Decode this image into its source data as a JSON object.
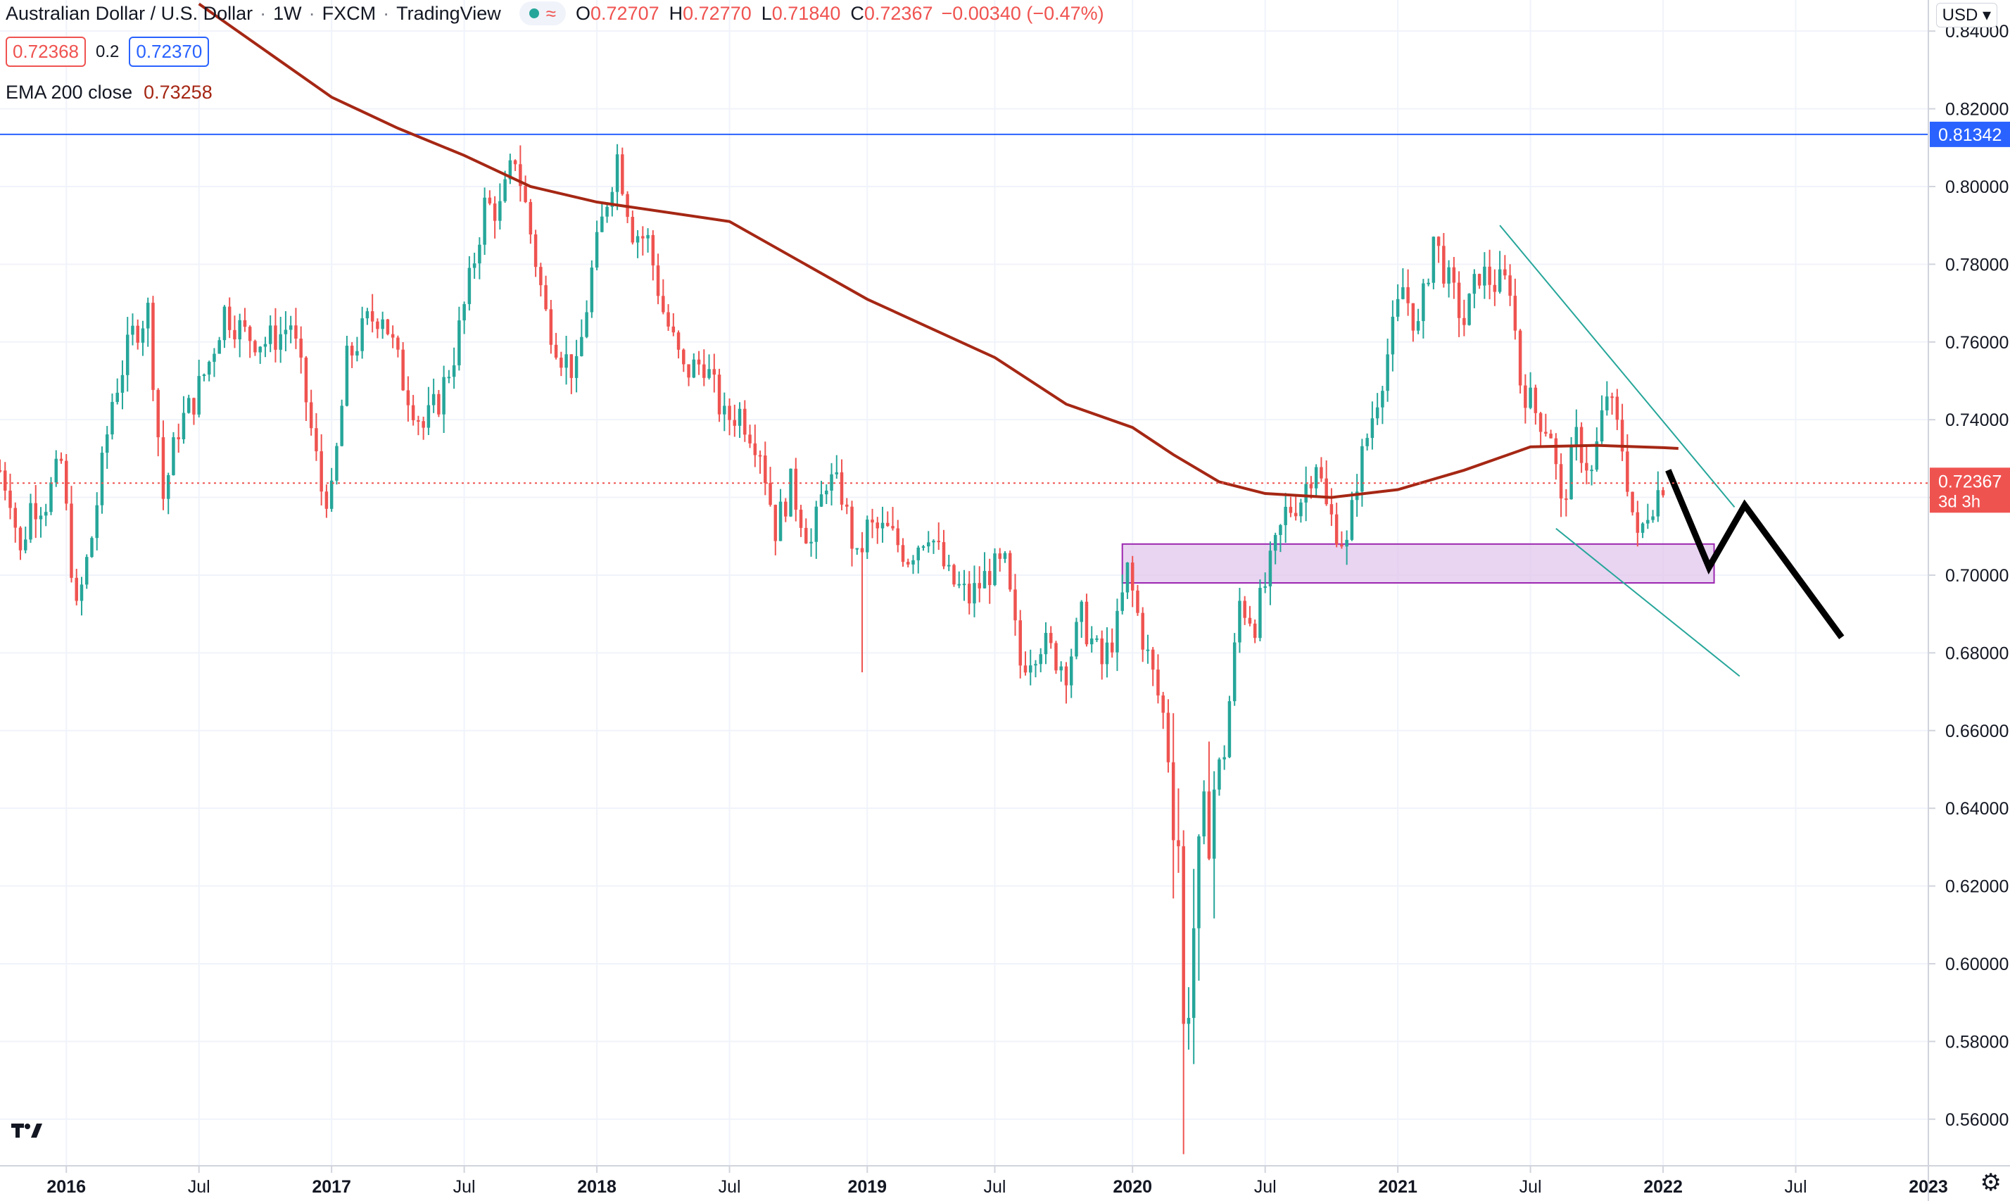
{
  "header": {
    "symbol": "Australian Dollar / U.S. Dollar",
    "interval": "1W",
    "exchange": "FXCM",
    "platform": "TradingView",
    "ohlc": {
      "o_label": "O",
      "o": "0.72707",
      "h_label": "H",
      "h": "0.72770",
      "l_label": "L",
      "l": "0.71840",
      "c_label": "C",
      "c": "0.72367",
      "change": "−0.00340 (−0.47%)"
    },
    "sell_price": "0.72368",
    "spread": "0.2",
    "buy_price": "0.72370",
    "ema_label": "EMA 200 close",
    "ema_value": "0.73258",
    "currency": "USD",
    "status_icon": "market-open-dot",
    "waves_icon": "≈"
  },
  "price_axis": {
    "labels": [
      "0.84000",
      "0.82000",
      "0.80000",
      "0.78000",
      "0.76000",
      "0.74000",
      "0.72000",
      "0.70000",
      "0.68000",
      "0.66000",
      "0.64000",
      "0.62000",
      "0.60000",
      "0.58000",
      "0.56000"
    ],
    "current_price_tag": "0.72367",
    "countdown_tag": "3d 3h",
    "hline_tag": "0.81342"
  },
  "time_axis": {
    "labels": [
      "2016",
      "Jul",
      "2017",
      "Jul",
      "2018",
      "Jul",
      "2019",
      "Jul",
      "2020",
      "Jul",
      "2021",
      "Jul",
      "2022",
      "Jul",
      "2023"
    ]
  },
  "colors": {
    "up": "#26a69a",
    "down": "#ef5350",
    "ema": "#a52714",
    "hline": "#2962ff",
    "trend": "#26a69a",
    "zone_fill": "#e1c6ec",
    "zone_border": "#9c27b0",
    "projection": "#000000",
    "grid": "#f0f3fa"
  },
  "chart_data": {
    "type": "candlestick",
    "timeframe": "weekly",
    "y_range": [
      0.548,
      0.848
    ],
    "x_range": [
      "2015-10-05",
      "2023-01-02"
    ],
    "ticks": [
      {
        "label": "2016",
        "date": "2016-01-04"
      },
      {
        "label": "Jul",
        "date": "2016-07-04"
      },
      {
        "label": "2017",
        "date": "2017-01-02"
      },
      {
        "label": "Jul",
        "date": "2017-07-03"
      },
      {
        "label": "2018",
        "date": "2018-01-01"
      },
      {
        "label": "Jul",
        "date": "2018-07-02"
      },
      {
        "label": "2019",
        "date": "2019-01-07"
      },
      {
        "label": "Jul",
        "date": "2019-07-01"
      },
      {
        "label": "2020",
        "date": "2020-01-06"
      },
      {
        "label": "Jul",
        "date": "2020-07-06"
      },
      {
        "label": "2021",
        "date": "2021-01-04"
      },
      {
        "label": "Jul",
        "date": "2021-07-05"
      },
      {
        "label": "2022",
        "date": "2022-01-03"
      },
      {
        "label": "Jul",
        "date": "2022-07-04"
      },
      {
        "label": "2023",
        "date": "2023-01-02"
      }
    ],
    "close_path": [
      [
        "2015-10-05",
        0.727
      ],
      [
        "2015-10-19",
        0.721
      ],
      [
        "2015-11-02",
        0.705
      ],
      [
        "2015-11-16",
        0.718
      ],
      [
        "2015-12-07",
        0.719
      ],
      [
        "2015-12-28",
        0.729
      ],
      [
        "2016-01-18",
        0.69
      ],
      [
        "2016-02-08",
        0.71
      ],
      [
        "2016-03-07",
        0.745
      ],
      [
        "2016-04-04",
        0.762
      ],
      [
        "2016-04-25",
        0.768
      ],
      [
        "2016-05-16",
        0.72
      ],
      [
        "2016-06-06",
        0.738
      ],
      [
        "2016-06-27",
        0.745
      ],
      [
        "2016-07-18",
        0.755
      ],
      [
        "2016-08-08",
        0.768
      ],
      [
        "2016-09-05",
        0.762
      ],
      [
        "2016-10-03",
        0.76
      ],
      [
        "2016-10-24",
        0.762
      ],
      [
        "2016-11-07",
        0.765
      ],
      [
        "2016-11-28",
        0.745
      ],
      [
        "2016-12-19",
        0.722
      ],
      [
        "2017-01-02",
        0.72
      ],
      [
        "2017-01-23",
        0.755
      ],
      [
        "2017-02-20",
        0.765
      ],
      [
        "2017-03-13",
        0.768
      ],
      [
        "2017-04-10",
        0.75
      ],
      [
        "2017-05-08",
        0.738
      ],
      [
        "2017-05-29",
        0.745
      ],
      [
        "2017-06-19",
        0.757
      ],
      [
        "2017-07-10",
        0.775
      ],
      [
        "2017-07-31",
        0.795
      ],
      [
        "2017-08-21",
        0.794
      ],
      [
        "2017-09-11",
        0.808
      ],
      [
        "2017-09-25",
        0.795
      ],
      [
        "2017-10-23",
        0.767
      ],
      [
        "2017-11-13",
        0.757
      ],
      [
        "2017-12-04",
        0.752
      ],
      [
        "2017-12-25",
        0.778
      ],
      [
        "2018-01-15",
        0.797
      ],
      [
        "2018-01-29",
        0.808
      ],
      [
        "2018-02-19",
        0.789
      ],
      [
        "2018-03-12",
        0.786
      ],
      [
        "2018-04-02",
        0.768
      ],
      [
        "2018-04-30",
        0.752
      ],
      [
        "2018-05-28",
        0.755
      ],
      [
        "2018-06-25",
        0.74
      ],
      [
        "2018-07-16",
        0.742
      ],
      [
        "2018-08-13",
        0.733
      ],
      [
        "2018-09-03",
        0.712
      ],
      [
        "2018-09-24",
        0.723
      ],
      [
        "2018-10-22",
        0.708
      ],
      [
        "2018-11-12",
        0.725
      ],
      [
        "2018-12-03",
        0.721
      ],
      [
        "2018-12-24",
        0.703
      ],
      [
        "2019-01-07",
        0.712
      ],
      [
        "2019-02-04",
        0.711
      ],
      [
        "2019-03-04",
        0.705
      ],
      [
        "2019-04-01",
        0.712
      ],
      [
        "2019-04-29",
        0.699
      ],
      [
        "2019-05-27",
        0.694
      ],
      [
        "2019-06-24",
        0.701
      ],
      [
        "2019-07-15",
        0.702
      ],
      [
        "2019-08-05",
        0.677
      ],
      [
        "2019-09-02",
        0.683
      ],
      [
        "2019-10-07",
        0.676
      ],
      [
        "2019-10-28",
        0.689
      ],
      [
        "2019-11-25",
        0.677
      ],
      [
        "2019-12-16",
        0.687
      ],
      [
        "2019-12-30",
        0.701
      ],
      [
        "2020-01-20",
        0.684
      ],
      [
        "2020-02-17",
        0.664
      ],
      [
        "2020-03-09",
        0.633
      ],
      [
        "2020-03-16",
        0.581
      ],
      [
        "2020-03-30",
        0.61
      ],
      [
        "2020-04-20",
        0.641
      ],
      [
        "2020-05-11",
        0.655
      ],
      [
        "2020-06-01",
        0.693
      ],
      [
        "2020-06-22",
        0.688
      ],
      [
        "2020-07-13",
        0.702
      ],
      [
        "2020-08-03",
        0.716
      ],
      [
        "2020-08-24",
        0.72
      ],
      [
        "2020-09-14",
        0.73
      ],
      [
        "2020-09-28",
        0.717
      ],
      [
        "2020-10-26",
        0.707
      ],
      [
        "2020-11-09",
        0.725
      ],
      [
        "2020-11-30",
        0.741
      ],
      [
        "2020-12-21",
        0.757
      ],
      [
        "2021-01-11",
        0.774
      ],
      [
        "2021-02-01",
        0.763
      ],
      [
        "2021-02-22",
        0.787
      ],
      [
        "2021-03-15",
        0.775
      ],
      [
        "2021-04-05",
        0.765
      ],
      [
        "2021-04-26",
        0.778
      ],
      [
        "2021-05-17",
        0.775
      ],
      [
        "2021-06-07",
        0.775
      ],
      [
        "2021-06-21",
        0.75
      ],
      [
        "2021-07-12",
        0.742
      ],
      [
        "2021-08-02",
        0.737
      ],
      [
        "2021-08-16",
        0.717
      ],
      [
        "2021-09-06",
        0.735
      ],
      [
        "2021-09-27",
        0.726
      ],
      [
        "2021-10-18",
        0.747
      ],
      [
        "2021-11-08",
        0.733
      ],
      [
        "2021-11-29",
        0.708
      ],
      [
        "2021-12-13",
        0.717
      ],
      [
        "2022-01-03",
        0.724
      ]
    ],
    "ema_200": [
      [
        "2016-07-04",
        0.847
      ],
      [
        "2017-01-02",
        0.823
      ],
      [
        "2017-04-03",
        0.815
      ],
      [
        "2017-07-03",
        0.808
      ],
      [
        "2017-10-02",
        0.8
      ],
      [
        "2018-01-01",
        0.796
      ],
      [
        "2018-07-02",
        0.791
      ],
      [
        "2019-01-07",
        0.771
      ],
      [
        "2019-07-01",
        0.756
      ],
      [
        "2019-10-07",
        0.744
      ],
      [
        "2020-01-06",
        0.738
      ],
      [
        "2020-03-02",
        0.731
      ],
      [
        "2020-05-04",
        0.724
      ],
      [
        "2020-07-06",
        0.721
      ],
      [
        "2020-10-05",
        0.72
      ],
      [
        "2021-01-04",
        0.722
      ],
      [
        "2021-04-05",
        0.727
      ],
      [
        "2021-07-05",
        0.733
      ],
      [
        "2021-10-04",
        0.7334
      ],
      [
        "2022-01-03",
        0.7328
      ],
      [
        "2022-01-24",
        0.7326
      ]
    ],
    "horizontal_line": 0.81342,
    "current_price": 0.72367,
    "demand_zone": {
      "y_low": 0.698,
      "y_high": 0.708,
      "x_start": "2019-12-23",
      "x_end": "2022-03-14"
    },
    "channel_lines": [
      [
        [
          "2021-05-24",
          0.79
        ],
        [
          "2022-04-11",
          0.7175
        ]
      ],
      [
        [
          "2021-08-09",
          0.712
        ],
        [
          "2022-04-18",
          0.674
        ]
      ]
    ],
    "projection_path": [
      [
        "2022-01-10",
        0.727
      ],
      [
        "2022-03-07",
        0.702
      ],
      [
        "2022-04-25",
        0.718
      ],
      [
        "2022-09-05",
        0.684
      ]
    ]
  }
}
